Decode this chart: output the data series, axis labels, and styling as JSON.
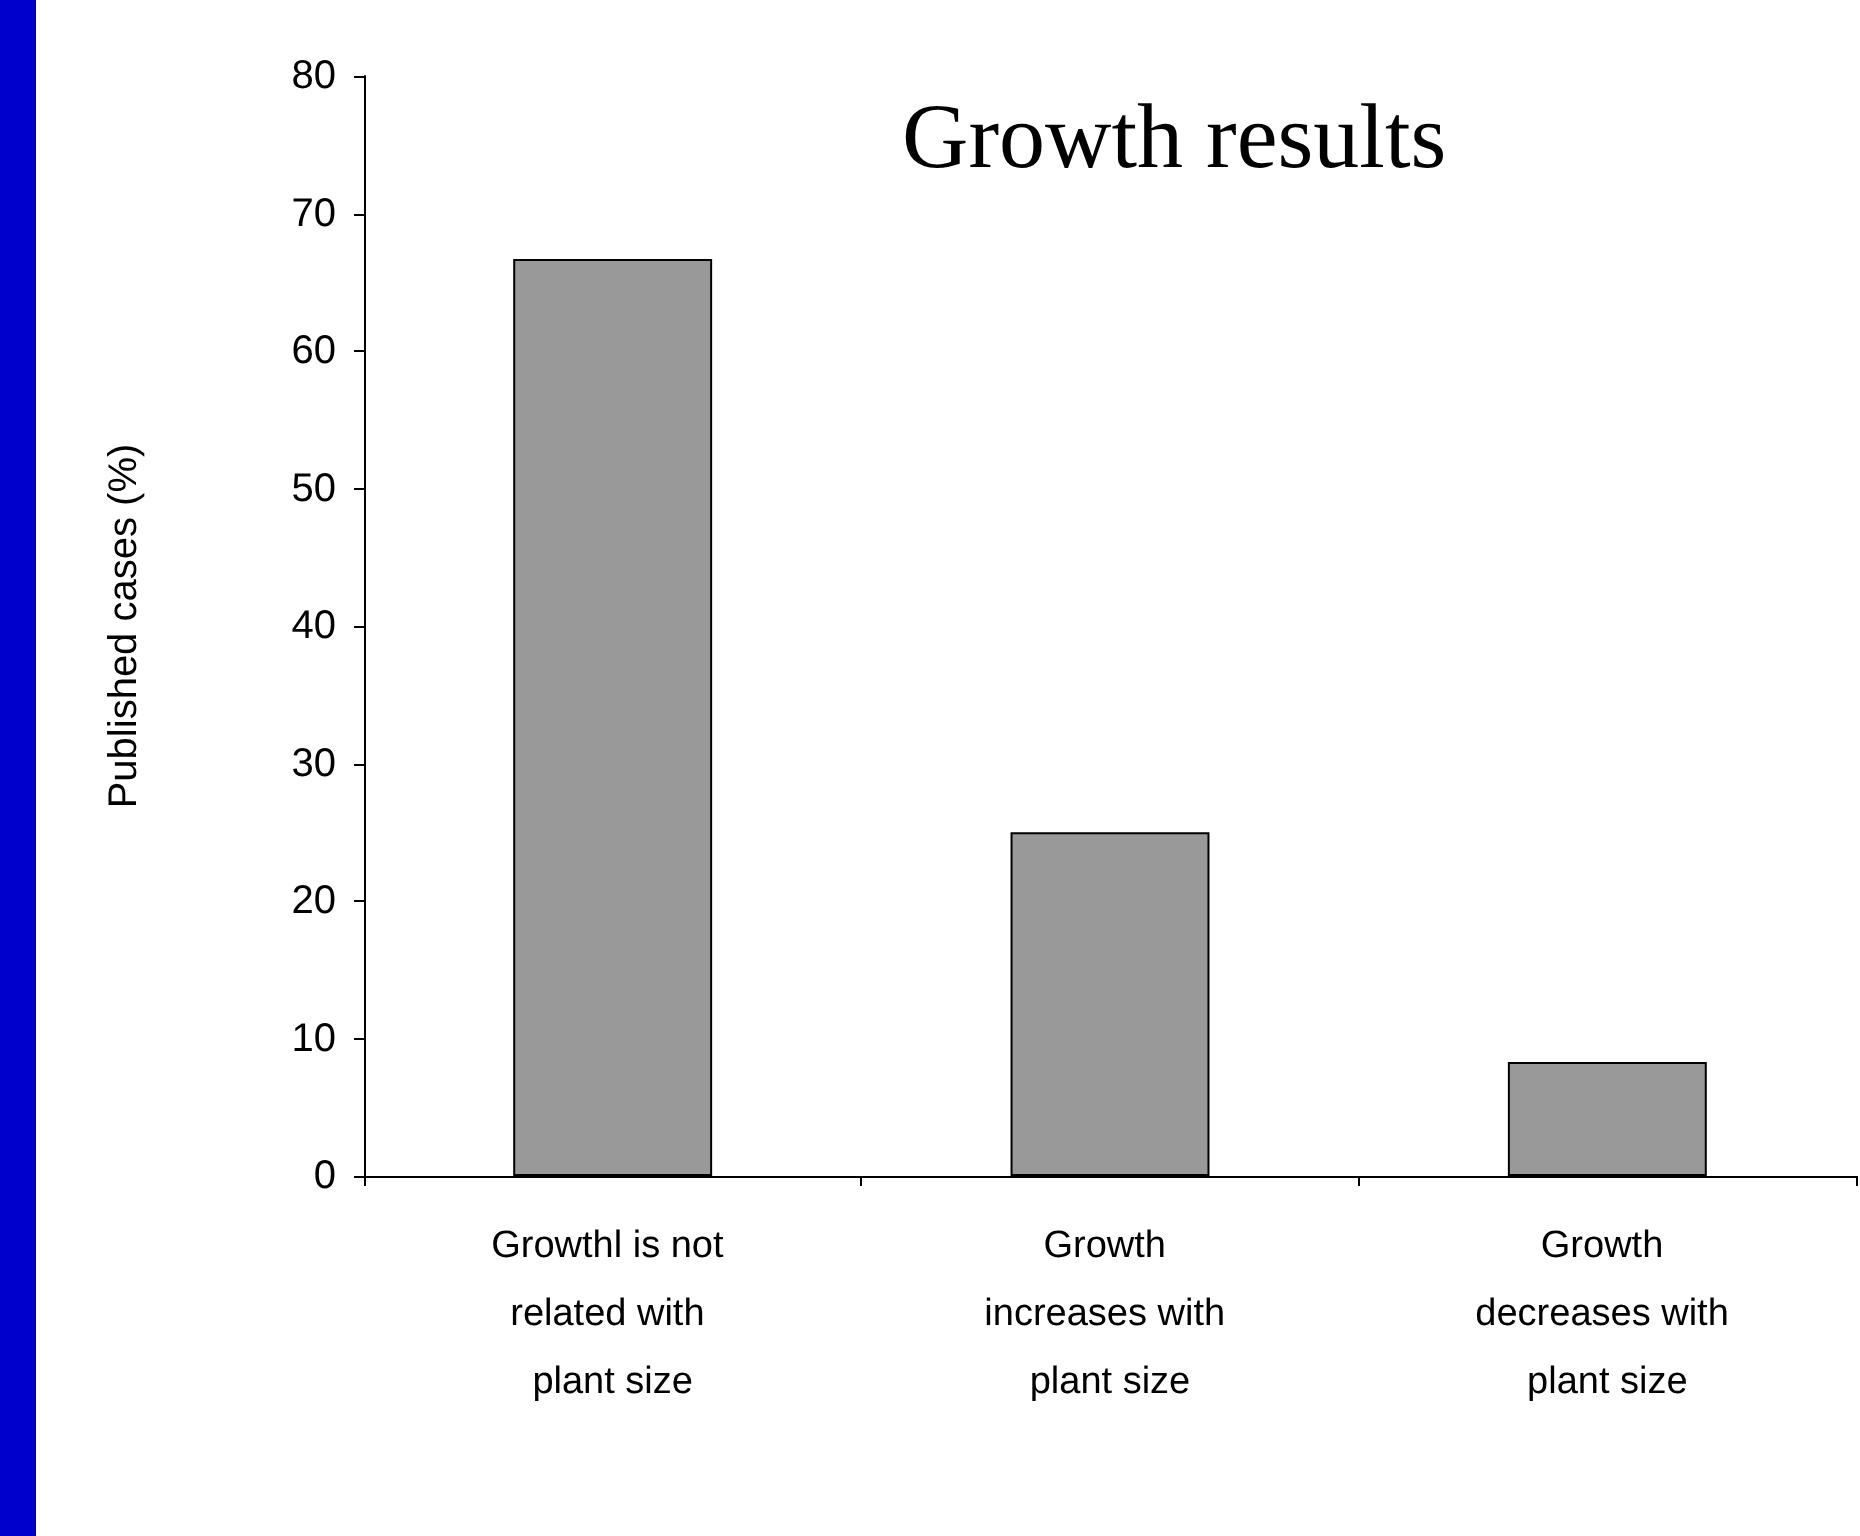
{
  "chart_data": {
    "type": "bar",
    "title": "Growth results",
    "ylabel": "Published cases (%)",
    "categories": [
      "Growthl is not related with plant size",
      "Growth increases with plant size",
      "Growth decreases with plant size"
    ],
    "values": [
      66.7,
      25,
      8.3
    ],
    "color": "#999999",
    "ylim": [
      0,
      80
    ],
    "yticks": [
      0,
      10,
      20,
      30,
      40,
      50,
      60,
      70,
      80
    ],
    "grid": false
  }
}
